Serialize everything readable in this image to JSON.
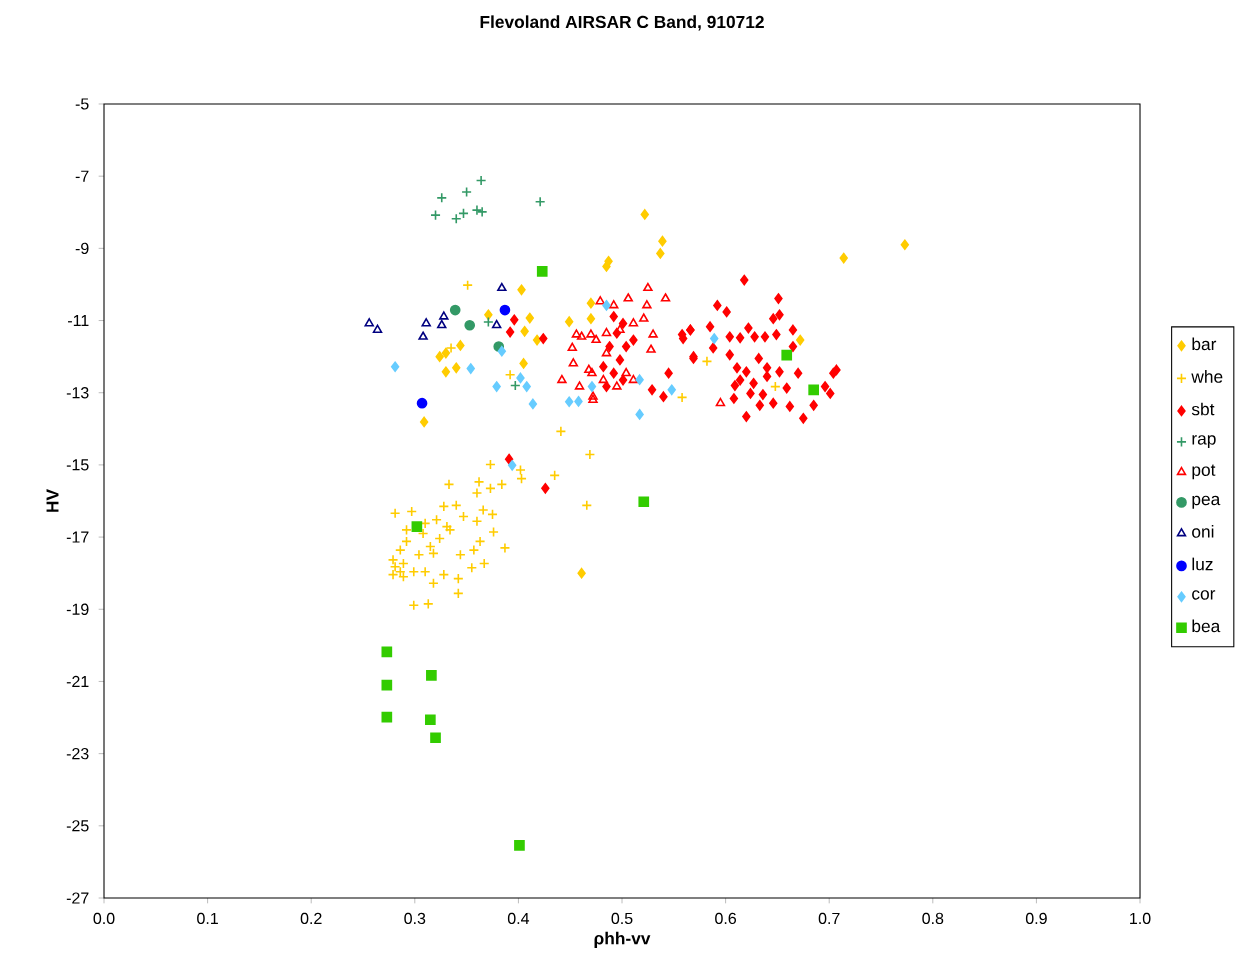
{
  "chart_data": {
    "type": "scatter",
    "title": "Flevoland AIRSAR C Band, 910712",
    "xlabel": "ρhh-vv",
    "ylabel": "HV",
    "xlim": [
      0,
      1
    ],
    "ylim": [
      -27,
      -5
    ],
    "xticks": [
      {
        "value": 0,
        "label": "0.0"
      },
      {
        "value": 0.1,
        "label": "0.1"
      },
      {
        "value": 0.2,
        "label": "0.2"
      },
      {
        "value": 0.3,
        "label": "0.3"
      },
      {
        "value": 0.4,
        "label": "0.4"
      },
      {
        "value": 0.5,
        "label": "0.5"
      },
      {
        "value": 0.6,
        "label": "0.6"
      },
      {
        "value": 0.7,
        "label": "0.7"
      },
      {
        "value": 0.8,
        "label": "0.8"
      },
      {
        "value": 0.9,
        "label": "0.9"
      },
      {
        "value": 1,
        "label": "1.0"
      }
    ],
    "yticks": [
      -27,
      -25,
      -23,
      -21,
      -19,
      -17,
      -15,
      -13,
      -11,
      -9,
      -7,
      -5
    ],
    "legend": "right",
    "grid": false,
    "series": [
      {
        "name": "bar",
        "color": "#ffcc00",
        "marker": "diamond",
        "x": [
          0.522,
          0.539,
          0.537,
          0.487,
          0.485,
          0.403,
          0.371,
          0.411,
          0.406,
          0.418,
          0.449,
          0.47,
          0.47,
          0.344,
          0.324,
          0.33,
          0.34,
          0.405,
          0.309,
          0.714,
          0.773,
          0.672,
          0.461,
          0.33
        ],
        "values": [
          -8.06,
          -8.8,
          -9.14,
          -9.36,
          -9.5,
          -10.15,
          -10.84,
          -10.93,
          -11.3,
          -11.54,
          -11.03,
          -10.52,
          -10.95,
          -11.69,
          -12.0,
          -12.42,
          -12.31,
          -12.19,
          -13.81,
          -9.27,
          -8.9,
          -11.54,
          -18.0,
          -11.9
        ]
      },
      {
        "name": "whe",
        "color": "#ffcc00",
        "marker": "cross",
        "x": [
          0.351,
          0.392,
          0.441,
          0.469,
          0.335,
          0.558,
          0.582,
          0.648,
          0.373,
          0.402,
          0.403,
          0.435,
          0.333,
          0.362,
          0.384,
          0.373,
          0.36,
          0.466,
          0.281,
          0.297,
          0.328,
          0.34,
          0.347,
          0.366,
          0.375,
          0.36,
          0.321,
          0.331,
          0.31,
          0.292,
          0.308,
          0.324,
          0.334,
          0.376,
          0.387,
          0.363,
          0.315,
          0.292,
          0.304,
          0.286,
          0.279,
          0.289,
          0.318,
          0.344,
          0.357,
          0.367,
          0.355,
          0.279,
          0.289,
          0.299,
          0.31,
          0.328,
          0.342,
          0.318,
          0.342,
          0.299,
          0.313,
          0.281,
          0.286
        ],
        "values": [
          -10.02,
          -12.5,
          -14.07,
          -14.71,
          -11.76,
          -13.13,
          -12.13,
          -12.83,
          -14.99,
          -15.14,
          -15.38,
          -15.29,
          -15.54,
          -15.47,
          -15.54,
          -15.65,
          -15.78,
          -16.12,
          -16.34,
          -16.29,
          -16.15,
          -16.12,
          -16.43,
          -16.25,
          -16.37,
          -16.56,
          -16.52,
          -16.71,
          -16.62,
          -16.8,
          -16.9,
          -17.04,
          -16.8,
          -16.86,
          -17.3,
          -17.12,
          -17.26,
          -17.12,
          -17.49,
          -17.36,
          -17.63,
          -17.73,
          -17.45,
          -17.49,
          -17.36,
          -17.73,
          -17.85,
          -18.04,
          -18.1,
          -17.96,
          -17.96,
          -18.04,
          -18.15,
          -18.28,
          -18.56,
          -18.89,
          -18.85,
          -17.82,
          -17.96
        ]
      },
      {
        "name": "sbt",
        "color": "#ff0000",
        "marker": "diamond",
        "x": [
          0.618,
          0.592,
          0.601,
          0.651,
          0.646,
          0.652,
          0.585,
          0.622,
          0.665,
          0.566,
          0.559,
          0.604,
          0.614,
          0.628,
          0.638,
          0.649,
          0.665,
          0.588,
          0.569,
          0.604,
          0.632,
          0.611,
          0.62,
          0.64,
          0.652,
          0.67,
          0.614,
          0.627,
          0.64,
          0.609,
          0.624,
          0.636,
          0.659,
          0.696,
          0.704,
          0.707,
          0.701,
          0.608,
          0.633,
          0.662,
          0.685,
          0.62,
          0.675,
          0.646,
          0.391,
          0.396,
          0.392,
          0.424,
          0.545,
          0.54,
          0.558,
          0.566,
          0.569,
          0.529,
          0.492,
          0.501,
          0.488,
          0.498,
          0.482,
          0.504,
          0.492,
          0.501,
          0.485,
          0.495,
          0.511,
          0.426
        ],
        "values": [
          -9.88,
          -10.58,
          -10.76,
          -10.39,
          -10.95,
          -10.84,
          -11.17,
          -11.21,
          -11.26,
          -11.26,
          -11.5,
          -11.45,
          -11.48,
          -11.45,
          -11.45,
          -11.39,
          -11.72,
          -11.76,
          -12.05,
          -11.95,
          -12.05,
          -12.31,
          -12.42,
          -12.31,
          -12.42,
          -12.46,
          -12.65,
          -12.74,
          -12.55,
          -12.8,
          -13.02,
          -13.05,
          -12.87,
          -12.83,
          -12.46,
          -12.37,
          -13.02,
          -13.16,
          -13.35,
          -13.38,
          -13.35,
          -13.66,
          -13.71,
          -13.29,
          -14.84,
          -10.98,
          -11.32,
          -11.5,
          -12.46,
          -13.11,
          -11.39,
          -11.26,
          -12.0,
          -12.92,
          -10.89,
          -11.08,
          -11.72,
          -12.09,
          -12.28,
          -11.72,
          -12.46,
          -12.65,
          -12.83,
          -11.35,
          -11.54,
          -15.65
        ]
      },
      {
        "name": "rap",
        "color": "#339966",
        "marker": "cross",
        "x": [
          0.326,
          0.35,
          0.364,
          0.32,
          0.34,
          0.347,
          0.36,
          0.365,
          0.421,
          0.371,
          0.397
        ],
        "values": [
          -7.6,
          -7.44,
          -7.12,
          -8.08,
          -8.18,
          -8.03,
          -7.94,
          -7.99,
          -7.71,
          -11.04,
          -12.8
        ]
      },
      {
        "name": "pot",
        "color": "#ff0000",
        "marker": "triangle",
        "x": [
          0.506,
          0.525,
          0.542,
          0.524,
          0.492,
          0.479,
          0.461,
          0.47,
          0.452,
          0.456,
          0.453,
          0.468,
          0.442,
          0.459,
          0.472,
          0.471,
          0.528,
          0.53,
          0.521,
          0.511,
          0.498,
          0.485,
          0.482,
          0.504,
          0.495,
          0.511,
          0.485,
          0.475,
          0.595,
          0.472
        ],
        "values": [
          -10.39,
          -10.1,
          -10.39,
          -10.58,
          -10.58,
          -10.47,
          -11.45,
          -11.39,
          -11.76,
          -11.39,
          -12.19,
          -12.37,
          -12.65,
          -12.83,
          -13.11,
          -12.46,
          -11.81,
          -11.39,
          -10.95,
          -11.08,
          -11.26,
          -11.91,
          -12.65,
          -12.46,
          -12.83,
          -12.65,
          -11.35,
          -11.54,
          -13.29,
          -13.2
        ]
      },
      {
        "name": "pea",
        "color": "#339966",
        "marker": "circle",
        "x": [
          0.339,
          0.353,
          0.381
        ],
        "values": [
          -10.71,
          -11.13,
          -11.72
        ]
      },
      {
        "name": "oni",
        "color": "#000080",
        "marker": "triangle",
        "x": [
          0.256,
          0.264,
          0.311,
          0.308,
          0.328,
          0.326,
          0.384,
          0.379
        ],
        "values": [
          -11.08,
          -11.26,
          -11.08,
          -11.45,
          -10.89,
          -11.13,
          -10.1,
          -11.13
        ]
      },
      {
        "name": "luz",
        "color": "#0000ff",
        "marker": "circle",
        "x": [
          0.387,
          0.307
        ],
        "values": [
          -10.71,
          -13.29
        ]
      },
      {
        "name": "cor",
        "color": "#66ccff",
        "marker": "diamond",
        "x": [
          0.281,
          0.354,
          0.384,
          0.379,
          0.402,
          0.408,
          0.414,
          0.449,
          0.458,
          0.471,
          0.485,
          0.517,
          0.548,
          0.517,
          0.394,
          0.589
        ],
        "values": [
          -12.28,
          -12.33,
          -11.85,
          -12.83,
          -12.59,
          -12.83,
          -13.31,
          -13.25,
          -13.24,
          -12.83,
          -10.58,
          -12.64,
          -12.92,
          -13.6,
          -15.01,
          -11.5
        ]
      },
      {
        "name": "bea",
        "color": "#33cc00",
        "marker": "square",
        "x": [
          0.659,
          0.685,
          0.423,
          0.521,
          0.302,
          0.273,
          0.316,
          0.273,
          0.273,
          0.315,
          0.32,
          0.401
        ],
        "values": [
          -11.96,
          -12.92,
          -9.64,
          -16.02,
          -16.71,
          -20.18,
          -20.83,
          -21.1,
          -21.99,
          -22.06,
          -22.56,
          -25.54
        ]
      }
    ]
  }
}
